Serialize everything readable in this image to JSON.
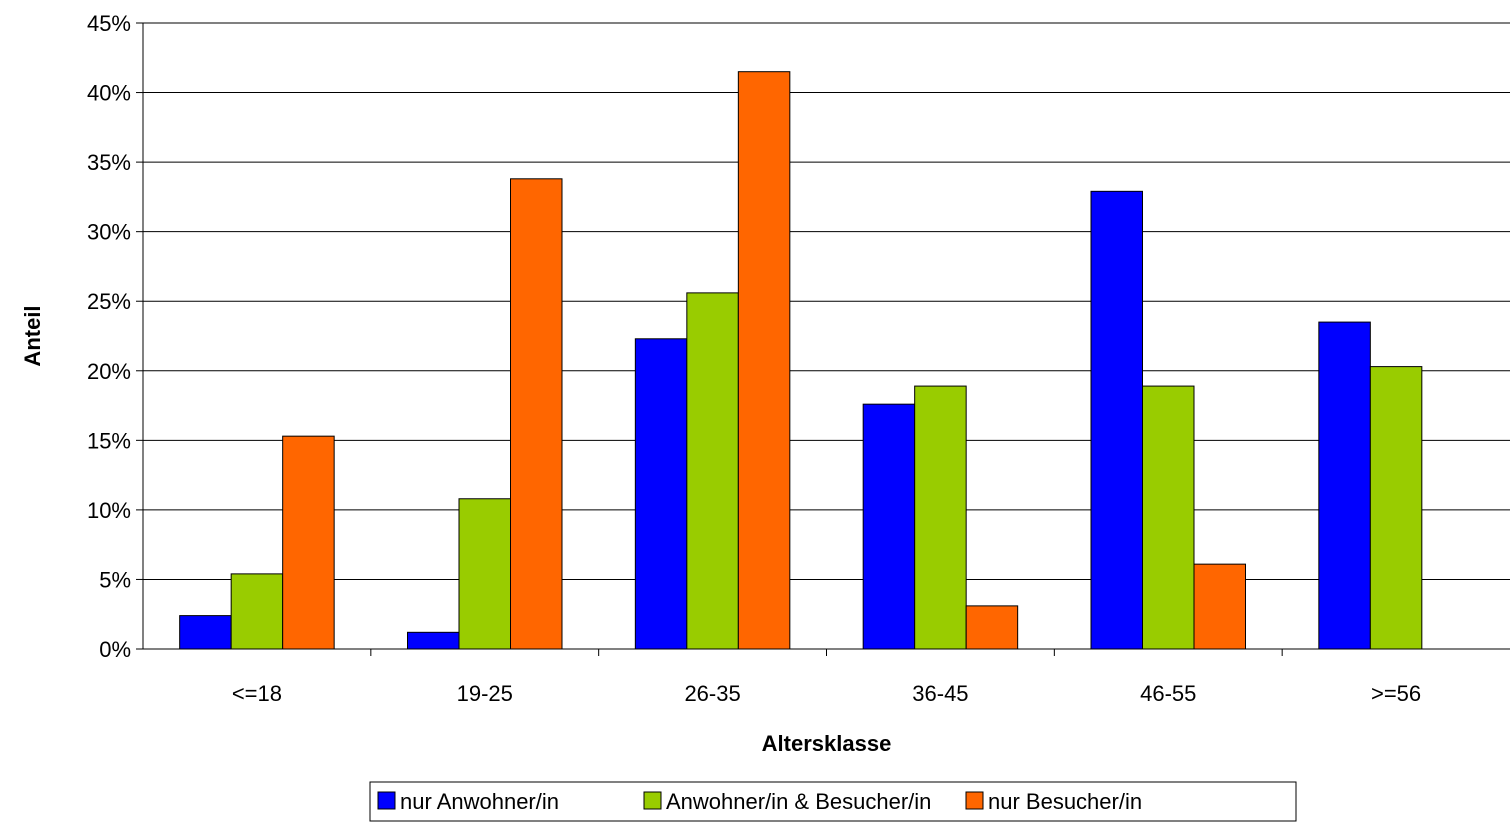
{
  "chart_data": {
    "type": "bar",
    "title": "",
    "xlabel": "Altersklasse",
    "ylabel": "Anteil",
    "categories": [
      "<=18",
      "19-25",
      "26-35",
      "36-45",
      "46-55",
      ">=56"
    ],
    "series": [
      {
        "name": "nur Anwohner/in",
        "color": "#0000ff",
        "values": [
          2.4,
          1.2,
          22.3,
          17.6,
          32.9,
          23.5
        ]
      },
      {
        "name": "Anwohner/in & Besucher/in",
        "color": "#99cc00",
        "values": [
          5.4,
          10.8,
          25.6,
          18.9,
          18.9,
          20.3
        ]
      },
      {
        "name": "nur Besucher/in",
        "color": "#ff6600",
        "values": [
          15.3,
          33.8,
          41.5,
          3.1,
          6.1,
          0
        ]
      }
    ],
    "ylim": [
      0,
      45
    ],
    "yticks": [
      0,
      5,
      10,
      15,
      20,
      25,
      30,
      35,
      40,
      45
    ],
    "ytick_suffix": "%",
    "grid": true,
    "legend_position": "bottom"
  }
}
